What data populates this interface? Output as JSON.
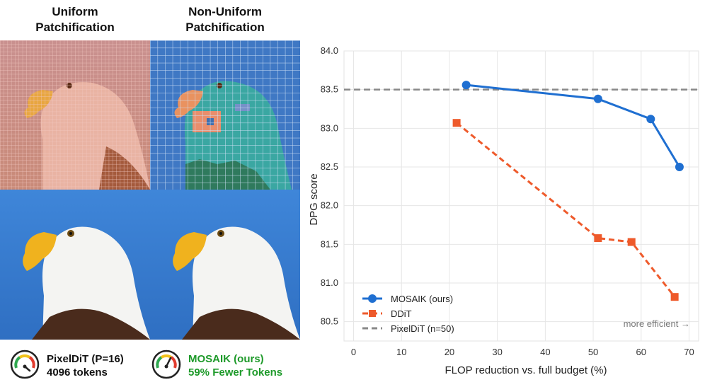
{
  "panels": {
    "left_title": [
      "Uniform",
      "Patchification"
    ],
    "right_title": [
      "Non-Uniform",
      "Patchification"
    ],
    "left_caption": [
      "PixelDiT (P=16)",
      "4096 tokens"
    ],
    "right_caption": [
      "MOSAIK (ours)",
      "59% Fewer Tokens"
    ]
  },
  "colors": {
    "mosaik": "#1f6fd1",
    "ddit": "#ee5a2b",
    "pixeldit": "#888888",
    "green_text": "#1e9a2a"
  },
  "chart_data": {
    "type": "line",
    "xlabel": "FLOP reduction vs. full budget (%)",
    "ylabel": "DPG score",
    "xlim": [
      -2,
      72
    ],
    "ylim": [
      80.25,
      84.0
    ],
    "xticks": [
      0,
      10,
      20,
      30,
      40,
      50,
      60,
      70
    ],
    "yticks": [
      80.5,
      81.0,
      81.5,
      82.0,
      82.5,
      83.0,
      83.5,
      84.0
    ],
    "ytick_labels": [
      "80.5",
      "81.0",
      "81.5",
      "82.0",
      "82.5",
      "83.0",
      "83.5",
      "84.0"
    ],
    "grid": true,
    "legend_position": "lower-left",
    "annotation": "more efficient →",
    "series": [
      {
        "name": "MOSAIK (ours)",
        "marker": "circle",
        "style": "solid",
        "x": [
          23.5,
          51.0,
          62.0,
          68.0
        ],
        "y": [
          83.56,
          83.38,
          83.12,
          82.5
        ]
      },
      {
        "name": "DDiT",
        "marker": "square",
        "style": "dashed",
        "x": [
          21.5,
          51.0,
          58.0,
          67.0
        ],
        "y": [
          83.07,
          81.58,
          81.53,
          80.82
        ]
      }
    ],
    "hline": {
      "name": "PixelDiT (n=50)",
      "y": 83.5
    }
  }
}
